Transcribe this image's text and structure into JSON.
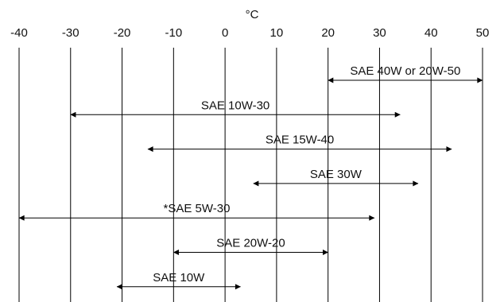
{
  "chart_data": {
    "type": "range",
    "unit_label": "°C",
    "x_ticks": [
      -40,
      -30,
      -20,
      -10,
      0,
      10,
      20,
      30,
      40,
      50
    ],
    "x_range": [
      -40,
      50
    ],
    "ranges": [
      {
        "label": "SAE 40W or 20W-50",
        "start": 20,
        "end": 50
      },
      {
        "label": "SAE 10W-30",
        "start": -30,
        "end": 34
      },
      {
        "label": "SAE 15W-40",
        "start": -15,
        "end": 44
      },
      {
        "label": "SAE 30W",
        "start": 5.5,
        "end": 37.5
      },
      {
        "label": "*SAE 5W-30",
        "start": -40,
        "end": 29
      },
      {
        "label": "SAE 20W-20",
        "start": -10,
        "end": 20
      },
      {
        "label": "SAE 10W",
        "start": -21,
        "end": 3
      }
    ],
    "grid": true,
    "colors": {
      "line": "#000000",
      "text": "#111111",
      "background": "#ffffff"
    }
  }
}
